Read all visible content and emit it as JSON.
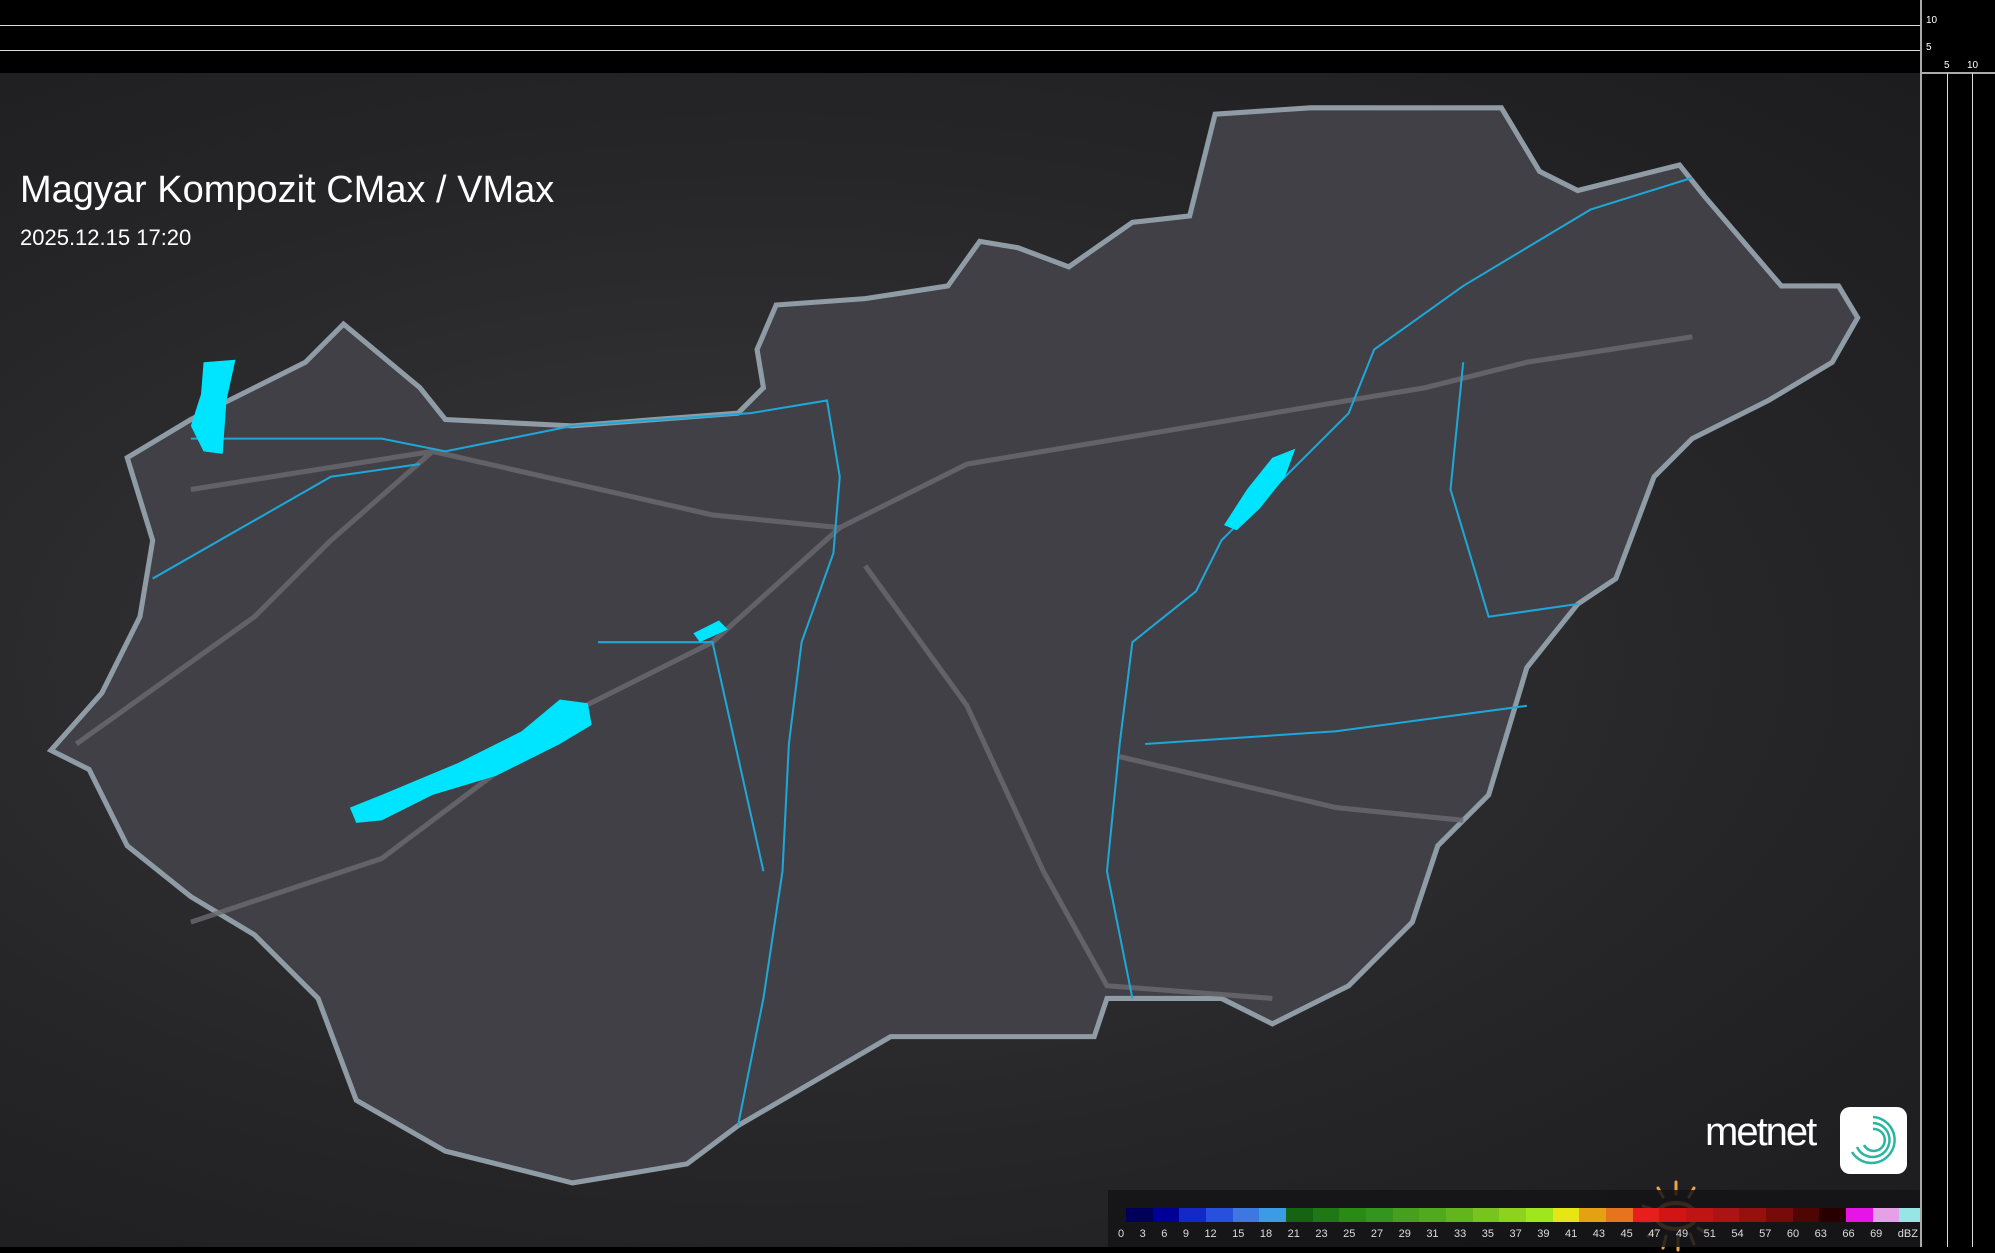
{
  "header": {
    "title": "Magyar Kompozit CMax / VMax",
    "timestamp": "2025.12.15 17:20"
  },
  "scale": {
    "vertical_ticks": [
      "10",
      "5"
    ],
    "horizontal_ticks": [
      "5",
      "10"
    ]
  },
  "legend": {
    "unit": "dBZ",
    "labels": [
      "0",
      "3",
      "6",
      "9",
      "12",
      "15",
      "18",
      "21",
      "23",
      "25",
      "27",
      "29",
      "31",
      "33",
      "35",
      "37",
      "39",
      "41",
      "43",
      "45",
      "47",
      "49",
      "51",
      "54",
      "57",
      "60",
      "63",
      "66",
      "69"
    ],
    "colors": [
      "#00005a",
      "#000096",
      "#1428c8",
      "#2850dc",
      "#3c78e0",
      "#3c9be6",
      "#146414",
      "#1e7814",
      "#288c14",
      "#32961e",
      "#46a01e",
      "#50aa1e",
      "#64b41e",
      "#78c31e",
      "#8cd21e",
      "#a0e61e",
      "#e6e614",
      "#e6a014",
      "#e6731e",
      "#e61e1e",
      "#d21414",
      "#be1414",
      "#aa1414",
      "#961010",
      "#780a0a",
      "#500505",
      "#280000",
      "#e614e6",
      "#e6a0e6",
      "#96e6e6"
    ]
  },
  "branding": {
    "logo_text": "metnet",
    "sun_color": "#f0a24a",
    "app_icon_color": "#2bb5a0"
  },
  "map_colors": {
    "country_fill": "#3f3f44",
    "border": "#8a9aa6",
    "water": "#00e5ff",
    "river": "#1ea7d8",
    "roads": "#6a6a70"
  }
}
